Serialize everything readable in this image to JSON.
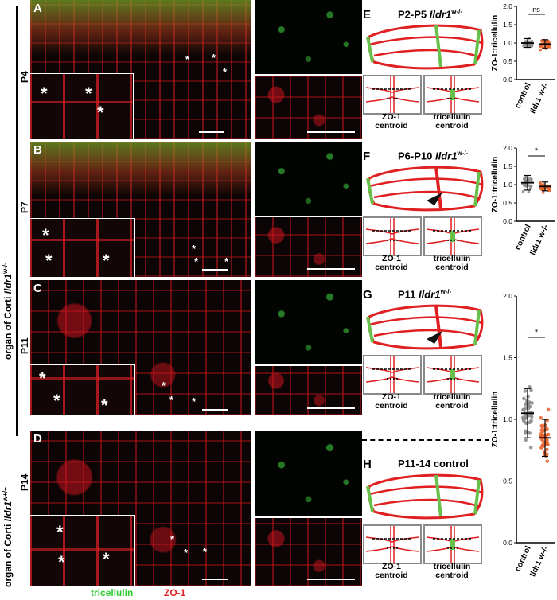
{
  "left_labels": {
    "mutant_side": "organ of Corti ",
    "mutant_gene": "Ildr1",
    "mutant_sup": "w-/-",
    "control_side": "organ of Corti ",
    "control_gene": "Ildr1",
    "control_sup": "w+/+"
  },
  "panels_left": [
    {
      "letter": "A",
      "age": "P4"
    },
    {
      "letter": "B",
      "age": "P7"
    },
    {
      "letter": "C",
      "age": "P11"
    },
    {
      "letter": "D",
      "age": "P14"
    }
  ],
  "legend": {
    "tricellulin": "tricellulin",
    "zo1": "ZO-1",
    "tricellulin_color": "#33cc33",
    "zo1_color": "#e02020"
  },
  "asterisk": "*",
  "panels_right": [
    {
      "letter": "E",
      "title_age": "P2-P5 ",
      "title_gene": "Ildr1",
      "title_sup": "w-/-"
    },
    {
      "letter": "F",
      "title_age": "P6-P10 ",
      "title_gene": "Ildr1",
      "title_sup": "w-/-"
    },
    {
      "letter": "G",
      "title_age": "P11 ",
      "title_gene": "Ildr1",
      "title_sup": "w-/-"
    },
    {
      "letter": "H",
      "title_age": "P11-14 control",
      "title_gene": "",
      "title_sup": ""
    }
  ],
  "centroid_labels": {
    "zo1": "ZO-1\ncentroid",
    "tri": "tricellulin\ncentroid"
  },
  "colors": {
    "junction_red": "#e02020",
    "tricellulin_green": "#66c04a",
    "control_gray": "#8a8a8a",
    "mutant_orange": "#e8602a"
  },
  "chart_data": [
    {
      "type": "scatter",
      "ylabel": "ZO-1:tricellulin",
      "categories": [
        "control",
        "Ildr1 w-/-"
      ],
      "yticks": [
        "0.0",
        "0.5",
        "1.0",
        "1.5",
        "2.0"
      ],
      "ylim": [
        0,
        2.0
      ],
      "series": [
        {
          "name": "control",
          "mean": 1.0,
          "sd": 0.12
        },
        {
          "name": "Ildr1 w-/-",
          "mean": 0.97,
          "sd": 0.12
        }
      ],
      "significance": "ns"
    },
    {
      "type": "scatter",
      "ylabel": "ZO-1:tricellulin",
      "categories": [
        "control",
        "Ildr1 w-/-"
      ],
      "yticks": [
        "0.0",
        "0.5",
        "1.0",
        "1.5",
        "2.0"
      ],
      "ylim": [
        0,
        2.0
      ],
      "series": [
        {
          "name": "control",
          "mean": 1.05,
          "sd": 0.2
        },
        {
          "name": "Ildr1 w-/-",
          "mean": 0.95,
          "sd": 0.12
        }
      ],
      "significance": "*"
    },
    {
      "type": "scatter",
      "ylabel": "ZO-1:tricellulin",
      "categories": [
        "control",
        "Ildr1 w-/-"
      ],
      "yticks": [
        "0.0",
        "0.5",
        "1.0",
        "1.5",
        "2.0"
      ],
      "ylim": [
        0,
        2.0
      ],
      "series": [
        {
          "name": "control",
          "mean": 1.05,
          "sd": 0.2
        },
        {
          "name": "Ildr1 w-/-",
          "mean": 0.85,
          "sd": 0.15
        }
      ],
      "significance": "*"
    }
  ]
}
